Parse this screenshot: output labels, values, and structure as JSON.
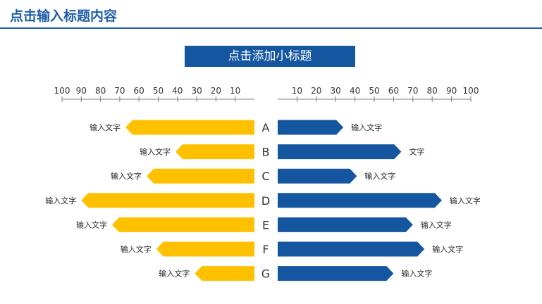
{
  "header": {
    "title": "点击输入标题内容",
    "subtitle": "点击添加小标题"
  },
  "colors": {
    "brand": "#1f5fa8",
    "left_bar": "#ffc000",
    "right_bar": "#1457a0",
    "axis": "#7f7f7f"
  },
  "chart_data": {
    "type": "bar",
    "orientation": "horizontal",
    "layout": "butterfly",
    "categories": [
      "A",
      "B",
      "C",
      "D",
      "E",
      "F",
      "G"
    ],
    "left_axis": {
      "ticks": [
        100,
        90,
        80,
        70,
        60,
        50,
        40,
        30,
        20,
        10
      ],
      "range": [
        0,
        100
      ]
    },
    "right_axis": {
      "ticks": [
        10,
        20,
        30,
        40,
        50,
        60,
        70,
        80,
        90,
        100
      ],
      "range": [
        0,
        100
      ]
    },
    "series": [
      {
        "side": "left",
        "color": "#ffc000",
        "values": [
          67,
          41,
          56,
          90,
          74,
          51,
          31
        ],
        "labels": [
          "输入文字",
          "输入文字",
          "输入文字",
          "输入文字",
          "输入文字",
          "输入文字",
          "输入文字"
        ]
      },
      {
        "side": "right",
        "color": "#1457a0",
        "values": [
          34,
          64,
          41,
          85,
          70,
          76,
          60
        ],
        "labels": [
          "输入文字",
          "文字",
          "输入文字",
          "输入文字",
          "输入文字",
          "输入文字",
          "输入文字"
        ]
      }
    ],
    "grid": false,
    "legend": "none"
  }
}
